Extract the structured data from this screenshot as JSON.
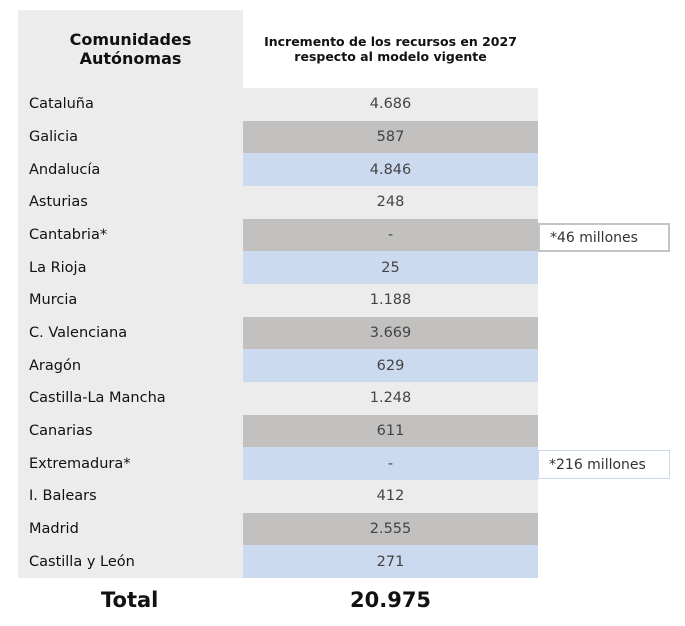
{
  "header": {
    "col1": "Comunidades Autónomas",
    "col2": "Incremento de los recursos en 2027 respecto al modelo vigente"
  },
  "colors": {
    "light": "#ececec",
    "gray": "#c2c1c0",
    "blue": "#ccdaf0"
  },
  "rows": [
    {
      "name": "Cataluña",
      "value": "4.686"
    },
    {
      "name": "Galicia",
      "value": "587"
    },
    {
      "name": "Andalucía",
      "value": "4.846"
    },
    {
      "name": "Asturias",
      "value": "248"
    },
    {
      "name": "Cantabria*",
      "value": "-"
    },
    {
      "name": "La Rioja",
      "value": "25"
    },
    {
      "name": "Murcia",
      "value": "1.188"
    },
    {
      "name": "C. Valenciana",
      "value": "3.669"
    },
    {
      "name": "Aragón",
      "value": "629"
    },
    {
      "name": "Castilla-La Mancha",
      "value": "1.248"
    },
    {
      "name": "Canarias",
      "value": "611"
    },
    {
      "name": "Extremadura*",
      "value": "-"
    },
    {
      "name": "I. Balears",
      "value": "412"
    },
    {
      "name": "Madrid",
      "value": "2.555"
    },
    {
      "name": "Castilla y León",
      "value": "271"
    }
  ],
  "notes": {
    "cantabria": "*46 millones",
    "extremadura": "*216 millones"
  },
  "total": {
    "label": "Total",
    "value": "20.975"
  }
}
